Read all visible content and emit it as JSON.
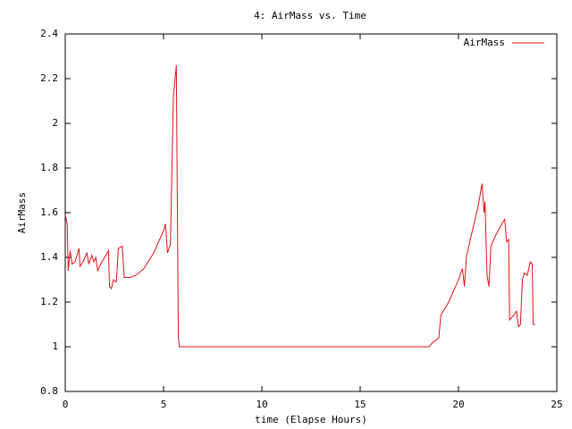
{
  "chart_data": {
    "type": "line",
    "title": "4: AirMass vs. Time",
    "x_label": "time (Elapse Hours)",
    "y_label": "AirMass",
    "xlim": [
      0,
      25
    ],
    "xticks": [
      0,
      5,
      10,
      15,
      20,
      25
    ],
    "ylim": [
      0.8,
      2.4
    ],
    "yticks": [
      0.8,
      1,
      1.2,
      1.4,
      1.6,
      1.8,
      2,
      2.2,
      2.4
    ],
    "legend": "top right",
    "series": [
      {
        "name": "AirMass",
        "color": "#e0101a",
        "x": [
          0,
          0.1,
          0.15,
          0.25,
          0.35,
          0.5,
          0.7,
          0.75,
          0.9,
          1.1,
          1.2,
          1.35,
          1.45,
          1.55,
          1.65,
          1.8,
          2,
          2.2,
          2.25,
          2.35,
          2.45,
          2.6,
          2.7,
          2.9,
          3.0,
          3.3,
          3.6,
          4.0,
          4.5,
          5.0,
          5.1,
          5.2,
          5.35,
          5.5,
          5.65,
          5.75,
          5.8,
          18.5,
          18.7,
          19.0,
          19.1,
          19.5,
          20.0,
          20.2,
          20.3,
          20.4,
          20.6,
          21.0,
          21.2,
          21.3,
          21.35,
          21.45,
          21.55,
          21.65,
          21.9,
          22.2,
          22.35,
          22.45,
          22.55,
          22.6,
          22.8,
          22.95,
          23.05,
          23.15,
          23.25,
          23.35,
          23.5,
          23.65,
          23.75,
          23.8,
          23.9
        ],
        "values": [
          1.59,
          1.55,
          1.34,
          1.43,
          1.37,
          1.38,
          1.44,
          1.36,
          1.38,
          1.42,
          1.37,
          1.41,
          1.38,
          1.4,
          1.34,
          1.37,
          1.4,
          1.43,
          1.27,
          1.26,
          1.3,
          1.29,
          1.44,
          1.45,
          1.31,
          1.31,
          1.32,
          1.35,
          1.42,
          1.52,
          1.55,
          1.42,
          1.46,
          2.12,
          2.26,
          1.05,
          1.0,
          1.0,
          1.02,
          1.04,
          1.14,
          1.2,
          1.3,
          1.35,
          1.27,
          1.4,
          1.48,
          1.63,
          1.73,
          1.6,
          1.65,
          1.32,
          1.27,
          1.45,
          1.5,
          1.55,
          1.57,
          1.47,
          1.48,
          1.12,
          1.14,
          1.16,
          1.09,
          1.1,
          1.3,
          1.33,
          1.32,
          1.38,
          1.37,
          1.1,
          1.1
        ]
      }
    ]
  }
}
